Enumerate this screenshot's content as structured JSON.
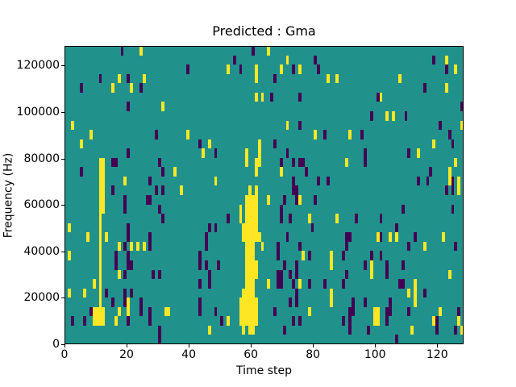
{
  "figure": {
    "background": "#ffffff",
    "text_color": "#000000"
  },
  "chart_data": {
    "type": "heatmap",
    "title": "Predicted : Gma",
    "xlabel": "Time step",
    "ylabel": "Frequency (Hz)",
    "x_ticks": [
      0,
      20,
      40,
      60,
      80,
      100,
      120
    ],
    "y_ticks": [
      0,
      20000,
      40000,
      60000,
      80000,
      100000,
      120000
    ],
    "x_range": [
      0,
      128.5
    ],
    "y_range": [
      0,
      128500
    ],
    "grid_cols": 128,
    "grid_rows": 32,
    "row_origin": "top",
    "legend": "none",
    "grid_lines": false,
    "colormap": "viridis",
    "colors": {
      "background": "#21918c",
      "high": "#fde725",
      "low": "#440154",
      "spine": "#000000"
    },
    "cells_high": [
      [
        24,
        0
      ],
      [
        65,
        0
      ],
      [
        71,
        1
      ],
      [
        122,
        1
      ],
      [
        52,
        2
      ],
      [
        61,
        2
      ],
      [
        69,
        2
      ],
      [
        75,
        2
      ],
      [
        125,
        2
      ],
      [
        17,
        3
      ],
      [
        25,
        3
      ],
      [
        61,
        3
      ],
      [
        84,
        3
      ],
      [
        87,
        3
      ],
      [
        107,
        3
      ],
      [
        15,
        4
      ],
      [
        21,
        4
      ],
      [
        122,
        4
      ],
      [
        61,
        5
      ],
      [
        63,
        5
      ],
      [
        101,
        5
      ],
      [
        31,
        6
      ],
      [
        103,
        7
      ],
      [
        105,
        7
      ],
      [
        2,
        8
      ],
      [
        71,
        8
      ],
      [
        127,
        8
      ],
      [
        8,
        9
      ],
      [
        39,
        9
      ],
      [
        80,
        9
      ],
      [
        91,
        9
      ],
      [
        5,
        10
      ],
      [
        46,
        10
      ],
      [
        62,
        10
      ],
      [
        118,
        10
      ],
      [
        44,
        11
      ],
      [
        58,
        11
      ],
      [
        62,
        11
      ],
      [
        113,
        11
      ],
      [
        11,
        12
      ],
      [
        12,
        12
      ],
      [
        58,
        12
      ],
      [
        61,
        12
      ],
      [
        62,
        12
      ],
      [
        90,
        12
      ],
      [
        125,
        12
      ],
      [
        11,
        13
      ],
      [
        12,
        13
      ],
      [
        35,
        13
      ],
      [
        61,
        13
      ],
      [
        69,
        13
      ],
      [
        123,
        13
      ],
      [
        11,
        14
      ],
      [
        12,
        14
      ],
      [
        19,
        14
      ],
      [
        48,
        14
      ],
      [
        123,
        14
      ],
      [
        126,
        14
      ],
      [
        11,
        15
      ],
      [
        12,
        15
      ],
      [
        37,
        15
      ],
      [
        59,
        15
      ],
      [
        61,
        15
      ],
      [
        126,
        15
      ],
      [
        11,
        16
      ],
      [
        12,
        16
      ],
      [
        58,
        16
      ],
      [
        59,
        16
      ],
      [
        60,
        16
      ],
      [
        61,
        16
      ],
      [
        65,
        16
      ],
      [
        75,
        16
      ],
      [
        11,
        17
      ],
      [
        12,
        17
      ],
      [
        56,
        17
      ],
      [
        58,
        17
      ],
      [
        59,
        17
      ],
      [
        60,
        17
      ],
      [
        61,
        17
      ],
      [
        11,
        18
      ],
      [
        56,
        18
      ],
      [
        58,
        18
      ],
      [
        59,
        18
      ],
      [
        60,
        18
      ],
      [
        61,
        18
      ],
      [
        78,
        18
      ],
      [
        87,
        18
      ],
      [
        1,
        19
      ],
      [
        11,
        19
      ],
      [
        57,
        19
      ],
      [
        58,
        19
      ],
      [
        59,
        19
      ],
      [
        60,
        19
      ],
      [
        61,
        19
      ],
      [
        7,
        20
      ],
      [
        11,
        20
      ],
      [
        13,
        20
      ],
      [
        57,
        20
      ],
      [
        58,
        20
      ],
      [
        59,
        20
      ],
      [
        60,
        20
      ],
      [
        61,
        20
      ],
      [
        62,
        20
      ],
      [
        100,
        20
      ],
      [
        104,
        20
      ],
      [
        106,
        20
      ],
      [
        121,
        20
      ],
      [
        11,
        21
      ],
      [
        17,
        21
      ],
      [
        21,
        21
      ],
      [
        23,
        21
      ],
      [
        25,
        21
      ],
      [
        58,
        21
      ],
      [
        59,
        21
      ],
      [
        60,
        21
      ],
      [
        63,
        21
      ],
      [
        115,
        21
      ],
      [
        1,
        22
      ],
      [
        11,
        22
      ],
      [
        58,
        22
      ],
      [
        59,
        22
      ],
      [
        60,
        22
      ],
      [
        76,
        22
      ],
      [
        85,
        22
      ],
      [
        11,
        23
      ],
      [
        58,
        23
      ],
      [
        59,
        23
      ],
      [
        60,
        23
      ],
      [
        61,
        23
      ],
      [
        85,
        23
      ],
      [
        98,
        23
      ],
      [
        11,
        24
      ],
      [
        17,
        24
      ],
      [
        58,
        24
      ],
      [
        59,
        24
      ],
      [
        60,
        24
      ],
      [
        61,
        24
      ],
      [
        98,
        24
      ],
      [
        123,
        24
      ],
      [
        9,
        25
      ],
      [
        11,
        25
      ],
      [
        58,
        25
      ],
      [
        59,
        25
      ],
      [
        60,
        25
      ],
      [
        65,
        25
      ],
      [
        75,
        25
      ],
      [
        112,
        25
      ],
      [
        1,
        26
      ],
      [
        6,
        26
      ],
      [
        11,
        26
      ],
      [
        57,
        26
      ],
      [
        58,
        26
      ],
      [
        59,
        26
      ],
      [
        60,
        26
      ],
      [
        85,
        26
      ],
      [
        110,
        26
      ],
      [
        112,
        26
      ],
      [
        11,
        27
      ],
      [
        20,
        27
      ],
      [
        56,
        27
      ],
      [
        57,
        27
      ],
      [
        58,
        27
      ],
      [
        59,
        27
      ],
      [
        60,
        27
      ],
      [
        61,
        27
      ],
      [
        85,
        27
      ],
      [
        112,
        27
      ],
      [
        9,
        28
      ],
      [
        10,
        28
      ],
      [
        11,
        28
      ],
      [
        12,
        28
      ],
      [
        17,
        28
      ],
      [
        20,
        28
      ],
      [
        32,
        28
      ],
      [
        33,
        28
      ],
      [
        56,
        28
      ],
      [
        57,
        28
      ],
      [
        58,
        28
      ],
      [
        59,
        28
      ],
      [
        60,
        28
      ],
      [
        61,
        28
      ],
      [
        78,
        28
      ],
      [
        99,
        28
      ],
      [
        100,
        28
      ],
      [
        120,
        28
      ],
      [
        9,
        29
      ],
      [
        10,
        29
      ],
      [
        11,
        29
      ],
      [
        12,
        29
      ],
      [
        16,
        29
      ],
      [
        52,
        29
      ],
      [
        56,
        29
      ],
      [
        57,
        29
      ],
      [
        58,
        29
      ],
      [
        59,
        29
      ],
      [
        60,
        29
      ],
      [
        61,
        29
      ],
      [
        99,
        29
      ],
      [
        100,
        29
      ],
      [
        118,
        29
      ],
      [
        126,
        29
      ],
      [
        46,
        30
      ],
      [
        57,
        30
      ],
      [
        59,
        30
      ],
      [
        60,
        30
      ],
      [
        111,
        30
      ],
      [
        127,
        30
      ]
    ],
    "cells_low": [
      [
        18,
        0
      ],
      [
        60,
        0
      ],
      [
        54,
        1
      ],
      [
        80,
        1
      ],
      [
        118,
        1
      ],
      [
        39,
        2
      ],
      [
        56,
        2
      ],
      [
        73,
        2
      ],
      [
        81,
        2
      ],
      [
        122,
        2
      ],
      [
        11,
        3
      ],
      [
        20,
        3
      ],
      [
        67,
        3
      ],
      [
        5,
        4
      ],
      [
        24,
        4
      ],
      [
        115,
        4
      ],
      [
        66,
        5
      ],
      [
        75,
        5
      ],
      [
        100,
        5
      ],
      [
        20,
        6
      ],
      [
        127,
        6
      ],
      [
        98,
        7
      ],
      [
        109,
        7
      ],
      [
        75,
        8
      ],
      [
        120,
        8
      ],
      [
        29,
        9
      ],
      [
        83,
        9
      ],
      [
        95,
        9
      ],
      [
        123,
        9
      ],
      [
        43,
        10
      ],
      [
        67,
        10
      ],
      [
        124,
        10
      ],
      [
        20,
        11
      ],
      [
        48,
        11
      ],
      [
        71,
        11
      ],
      [
        96,
        11
      ],
      [
        110,
        11
      ],
      [
        15,
        12
      ],
      [
        16,
        12
      ],
      [
        30,
        12
      ],
      [
        69,
        12
      ],
      [
        73,
        12
      ],
      [
        75,
        12
      ],
      [
        76,
        12
      ],
      [
        96,
        12
      ],
      [
        5,
        13
      ],
      [
        31,
        13
      ],
      [
        77,
        13
      ],
      [
        117,
        13
      ],
      [
        27,
        14
      ],
      [
        73,
        14
      ],
      [
        81,
        14
      ],
      [
        84,
        14
      ],
      [
        113,
        14
      ],
      [
        116,
        14
      ],
      [
        124,
        14
      ],
      [
        15,
        15
      ],
      [
        29,
        15
      ],
      [
        31,
        15
      ],
      [
        73,
        15
      ],
      [
        74,
        15
      ],
      [
        122,
        15
      ],
      [
        124,
        15
      ],
      [
        19,
        16
      ],
      [
        26,
        16
      ],
      [
        27,
        16
      ],
      [
        70,
        16
      ],
      [
        74,
        16
      ],
      [
        80,
        16
      ],
      [
        19,
        17
      ],
      [
        30,
        17
      ],
      [
        69,
        17
      ],
      [
        108,
        17
      ],
      [
        124,
        17
      ],
      [
        31,
        18
      ],
      [
        52,
        18
      ],
      [
        69,
        18
      ],
      [
        72,
        18
      ],
      [
        93,
        18
      ],
      [
        101,
        18
      ],
      [
        20,
        19
      ],
      [
        46,
        19
      ],
      [
        48,
        19
      ],
      [
        79,
        19
      ],
      [
        106,
        19
      ],
      [
        20,
        20
      ],
      [
        27,
        20
      ],
      [
        45,
        20
      ],
      [
        71,
        20
      ],
      [
        90,
        20
      ],
      [
        91,
        20
      ],
      [
        101,
        20
      ],
      [
        112,
        20
      ],
      [
        19,
        21
      ],
      [
        27,
        21
      ],
      [
        45,
        21
      ],
      [
        68,
        21
      ],
      [
        75,
        21
      ],
      [
        90,
        21
      ],
      [
        110,
        21
      ],
      [
        125,
        21
      ],
      [
        16,
        22
      ],
      [
        20,
        22
      ],
      [
        43,
        22
      ],
      [
        68,
        22
      ],
      [
        78,
        22
      ],
      [
        89,
        22
      ],
      [
        98,
        22
      ],
      [
        101,
        22
      ],
      [
        16,
        23
      ],
      [
        20,
        23
      ],
      [
        21,
        23
      ],
      [
        43,
        23
      ],
      [
        45,
        23
      ],
      [
        49,
        23
      ],
      [
        70,
        23
      ],
      [
        74,
        23
      ],
      [
        96,
        23
      ],
      [
        103,
        23
      ],
      [
        108,
        23
      ],
      [
        19,
        24
      ],
      [
        28,
        24
      ],
      [
        30,
        24
      ],
      [
        46,
        24
      ],
      [
        68,
        24
      ],
      [
        69,
        24
      ],
      [
        72,
        24
      ],
      [
        74,
        24
      ],
      [
        90,
        24
      ],
      [
        103,
        24
      ],
      [
        43,
        25
      ],
      [
        46,
        25
      ],
      [
        68,
        25
      ],
      [
        69,
        25
      ],
      [
        73,
        25
      ],
      [
        78,
        25
      ],
      [
        83,
        25
      ],
      [
        89,
        25
      ],
      [
        107,
        25
      ],
      [
        108,
        25
      ],
      [
        13,
        26
      ],
      [
        19,
        26
      ],
      [
        21,
        26
      ],
      [
        74,
        26
      ],
      [
        115,
        26
      ],
      [
        15,
        27
      ],
      [
        19,
        27
      ],
      [
        24,
        27
      ],
      [
        43,
        27
      ],
      [
        72,
        27
      ],
      [
        74,
        27
      ],
      [
        92,
        27
      ],
      [
        96,
        27
      ],
      [
        104,
        27
      ],
      [
        8,
        28
      ],
      [
        24,
        28
      ],
      [
        27,
        28
      ],
      [
        43,
        28
      ],
      [
        48,
        28
      ],
      [
        67,
        28
      ],
      [
        91,
        28
      ],
      [
        92,
        28
      ],
      [
        103,
        28
      ],
      [
        104,
        28
      ],
      [
        110,
        28
      ],
      [
        126,
        28
      ],
      [
        2,
        29
      ],
      [
        6,
        29
      ],
      [
        20,
        29
      ],
      [
        27,
        29
      ],
      [
        50,
        29
      ],
      [
        73,
        29
      ],
      [
        75,
        29
      ],
      [
        89,
        29
      ],
      [
        91,
        29
      ],
      [
        103,
        29
      ],
      [
        119,
        29
      ],
      [
        30,
        30
      ],
      [
        70,
        30
      ],
      [
        91,
        30
      ],
      [
        97,
        30
      ],
      [
        119,
        30
      ],
      [
        125,
        30
      ],
      [
        30,
        31
      ],
      [
        106,
        31
      ]
    ]
  }
}
